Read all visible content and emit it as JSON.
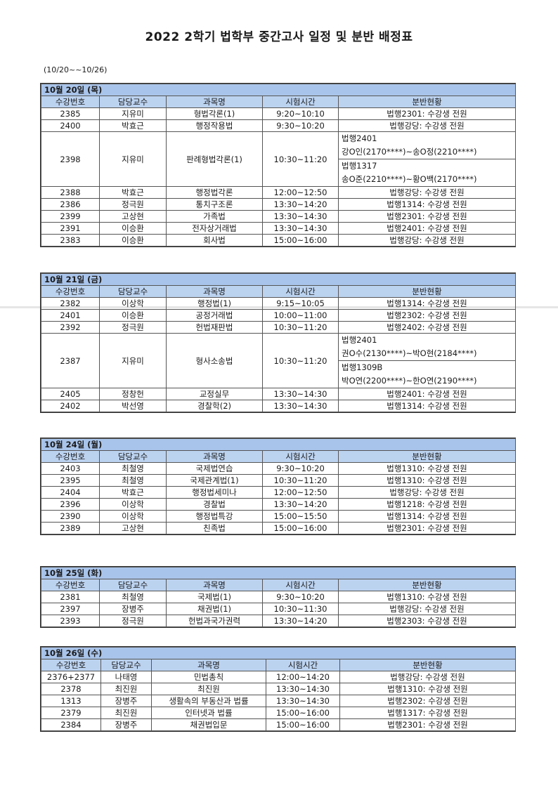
{
  "title": "2022 2학기 법학부 중간고사 일정 및 분반 배정표",
  "date_range": "(10/20~~10/26)",
  "columns": [
    "수강번호",
    "담당교수",
    "과목명",
    "시험시간",
    "분반현황"
  ],
  "colors": {
    "day_header_bg": "#a9c4ea",
    "column_header_bg": "#bcd3f0"
  },
  "days": [
    {
      "label": "10월 20일 (목)",
      "rows": [
        {
          "no": "2385",
          "prof": "지유미",
          "subject": "형법각론(1)",
          "time": "9:20~10:10",
          "room": "법행2301: 수강생 전원"
        },
        {
          "no": "2400",
          "prof": "박효근",
          "subject": "행정작용법",
          "time": "9:30~10:20",
          "room": "법행강당: 수강생 전원"
        },
        {
          "no": "2398",
          "prof": "지유미",
          "subject": "판례형법각론(1)",
          "time": "10:30~11:20",
          "split": [
            {
              "room": "법행2401",
              "range": "강O인(2170****)~송O정(2210****)"
            },
            {
              "room": "법행1317",
              "range": "송O준(2210****)~황O백(2170****)"
            }
          ]
        },
        {
          "no": "2388",
          "prof": "박효근",
          "subject": "행정법각론",
          "time": "12:00~12:50",
          "room": "법행강당: 수강생 전원"
        },
        {
          "no": "2386",
          "prof": "정극원",
          "subject": "통치구조론",
          "time": "13:30~14:20",
          "room": "법행1314: 수강생 전원"
        },
        {
          "no": "2399",
          "prof": "고상현",
          "subject": "가족법",
          "time": "13:30~14:30",
          "room": "법행2301: 수강생 전원"
        },
        {
          "no": "2391",
          "prof": "이승환",
          "subject": "전자상거래법",
          "time": "13:30~14:30",
          "room": "법행2401: 수강생 전원"
        },
        {
          "no": "2383",
          "prof": "이승환",
          "subject": "회사법",
          "time": "15:00~16:00",
          "room": "법행강당: 수강생 전원"
        }
      ]
    },
    {
      "label": "10월 21일 (금)",
      "rows": [
        {
          "no": "2382",
          "prof": "이상학",
          "subject": "행정법(1)",
          "time": "9:15~10:05",
          "room": "법행1314: 수강생 전원"
        },
        {
          "no": "2401",
          "prof": "이승환",
          "subject": "공정거래법",
          "time": "10:00~11:00",
          "room": "법행2302: 수강생 전원"
        },
        {
          "no": "2392",
          "prof": "정극원",
          "subject": "헌법재판법",
          "time": "10:30~11:20",
          "room": "법행2402: 수강생 전원"
        },
        {
          "no": "2387",
          "prof": "지유미",
          "subject": "형사소송법",
          "time": "10:30~11:20",
          "split": [
            {
              "room": "법행2401",
              "range": "권O수(2130****)~박O현(2184****)"
            },
            {
              "room": "법행1309B",
              "range": "박O연(2200****)~한O연(2190****)"
            }
          ]
        },
        {
          "no": "2405",
          "prof": "정창헌",
          "subject": "교정실무",
          "time": "13:30~14:30",
          "room": "법행2401: 수강생 전원"
        },
        {
          "no": "2402",
          "prof": "박선영",
          "subject": "경찰학(2)",
          "time": "13:30~14:30",
          "room": "법행1314: 수강생 전원"
        }
      ]
    },
    {
      "label": "10월 24일 (월)",
      "rows": [
        {
          "no": "2403",
          "prof": "최철영",
          "subject": "국제법연습",
          "time": "9:30~10:20",
          "room": "법행1310: 수강생 전원"
        },
        {
          "no": "2395",
          "prof": "최철영",
          "subject": "국제관계법(1)",
          "time": "10:30~11:20",
          "room": "법행1310: 수강생 전원"
        },
        {
          "no": "2404",
          "prof": "박효근",
          "subject": "행정법세미나",
          "time": "12:00~12:50",
          "room": "법행강당: 수강생 전원"
        },
        {
          "no": "2396",
          "prof": "이상학",
          "subject": "경찰법",
          "time": "13:30~14:20",
          "room": "법행1218: 수강생 전원"
        },
        {
          "no": "2390",
          "prof": "이상학",
          "subject": "행정법특강",
          "time": "15:00~15:50",
          "room": "법행1314: 수강생 전원"
        },
        {
          "no": "2389",
          "prof": "고상현",
          "subject": "친족법",
          "time": "15:00~16:00",
          "room": "법행2301: 수강생 전원"
        }
      ]
    },
    {
      "label": "10월 25일 (화)",
      "rows": [
        {
          "no": "2381",
          "prof": "최철영",
          "subject": "국제법(1)",
          "time": "9:30~10:20",
          "room": "법행1310: 수강생 전원"
        },
        {
          "no": "2397",
          "prof": "장병주",
          "subject": "채권법(1)",
          "time": "10:30~11:30",
          "room": "법행강당: 수강생 전원"
        },
        {
          "no": "2393",
          "prof": "정극원",
          "subject": "헌법과국가권력",
          "time": "13:30~14:20",
          "room": "법행2303: 수강생 전원"
        }
      ]
    },
    {
      "label": "10월 26일 (수)",
      "rows": [
        {
          "no": "2376+2377",
          "prof": "나태영",
          "subject": "민법총칙",
          "time": "12:00~14:20",
          "room": "법행강당: 수강생 전원"
        },
        {
          "no": "2378",
          "prof": "최진원",
          "subject": "최진원",
          "time": "13:30~14:30",
          "room": "법행1310: 수강생 전원"
        },
        {
          "no": "1313",
          "prof": "장병주",
          "subject": "생활속의 부동산과 법률",
          "time": "13:30~14:30",
          "room": "법행2302: 수강생 전원"
        },
        {
          "no": "2379",
          "prof": "최진원",
          "subject": "인터넷과 법률",
          "time": "15:00~16:00",
          "room": "법행1317: 수강생 전원"
        },
        {
          "no": "2384",
          "prof": "장병주",
          "subject": "채권법입문",
          "time": "15:00~16:00",
          "room": "법행2301: 수강생 전원"
        }
      ]
    }
  ]
}
